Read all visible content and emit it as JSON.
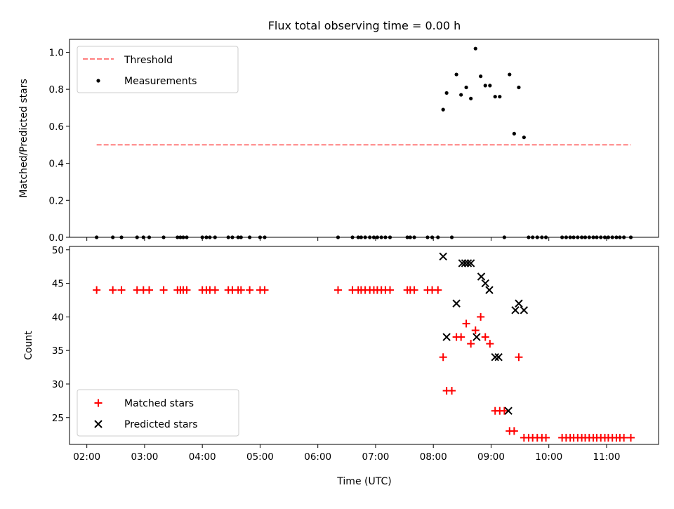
{
  "chart_data": [
    {
      "type": "scatter",
      "title": "Flux total observing time = 0.00 h",
      "xlabel": "",
      "ylabel": "Matched/Predicted stars",
      "ylim": [
        0,
        1.07
      ],
      "yticks": [
        0.0,
        0.2,
        0.4,
        0.6,
        0.8,
        1.0
      ],
      "ytick_labels": [
        "0.0",
        "0.2",
        "0.4",
        "0.6",
        "0.8",
        "1.0"
      ],
      "xlim": [
        1.7,
        11.9
      ],
      "xticks": [
        2,
        3,
        4,
        5,
        6,
        7,
        8,
        9,
        10,
        11
      ],
      "xtick_labels": [
        "",
        "",
        "",
        "",
        "",
        "",
        "",
        "",
        "",
        ""
      ],
      "grid": false,
      "legend_position": "top-left",
      "threshold": {
        "name": "Threshold",
        "value": 0.5,
        "x_range": [
          2.17,
          11.42
        ],
        "color": "#ff7f7f",
        "style": "dashed"
      },
      "measurements": {
        "name": "Measurements",
        "color": "#000000",
        "x": [
          2.17,
          2.45,
          2.6,
          2.87,
          2.98,
          3.08,
          3.33,
          3.57,
          3.62,
          3.67,
          3.73,
          4.0,
          4.07,
          4.13,
          4.22,
          4.45,
          4.52,
          4.62,
          4.67,
          4.82,
          5.0,
          5.08,
          6.35,
          6.6,
          6.7,
          6.75,
          6.82,
          6.9,
          6.97,
          7.03,
          7.1,
          7.17,
          7.25,
          7.55,
          7.6,
          7.67,
          7.9,
          7.98,
          8.08,
          8.17,
          8.23,
          8.32,
          8.4,
          8.48,
          8.57,
          8.65,
          8.73,
          8.82,
          8.9,
          8.98,
          9.07,
          9.15,
          9.23,
          9.32,
          9.4,
          9.48,
          9.57,
          9.65,
          9.72,
          9.8,
          9.88,
          9.95,
          10.23,
          10.3,
          10.37,
          10.43,
          10.5,
          10.57,
          10.63,
          10.7,
          10.77,
          10.83,
          10.9,
          10.97,
          11.03,
          11.1,
          11.17,
          11.23,
          11.3,
          11.42
        ],
        "y": [
          0,
          0,
          0,
          0,
          0,
          0,
          0,
          0,
          0,
          0,
          0,
          0,
          0,
          0,
          0,
          0,
          0,
          0,
          0,
          0,
          0,
          0,
          0,
          0,
          0,
          0,
          0,
          0,
          0,
          0,
          0,
          0,
          0,
          0,
          0,
          0,
          0,
          0,
          0,
          0.69,
          0.78,
          0,
          0.88,
          0.77,
          0.81,
          0.75,
          1.02,
          0.87,
          0.82,
          0.82,
          0.76,
          0.76,
          0,
          0.88,
          0.56,
          0.81,
          0.54,
          0,
          0,
          0,
          0,
          0,
          0,
          0,
          0,
          0,
          0,
          0,
          0,
          0,
          0,
          0,
          0,
          0,
          0,
          0,
          0,
          0,
          0,
          0
        ]
      }
    },
    {
      "type": "scatter",
      "title": "",
      "xlabel": "Time (UTC)",
      "ylabel": "Count",
      "ylim": [
        21,
        50.5
      ],
      "yticks": [
        25,
        30,
        35,
        40,
        45,
        50
      ],
      "ytick_labels": [
        "25",
        "30",
        "35",
        "40",
        "45",
        "50"
      ],
      "xlim": [
        1.7,
        11.9
      ],
      "xticks": [
        2,
        3,
        4,
        5,
        6,
        7,
        8,
        9,
        10,
        11
      ],
      "xtick_labels": [
        "02:00",
        "03:00",
        "04:00",
        "05:00",
        "06:00",
        "07:00",
        "08:00",
        "09:00",
        "10:00",
        "11:00"
      ],
      "grid": false,
      "legend_position": "bottom-left",
      "series": [
        {
          "name": "Matched stars",
          "marker": "plus",
          "color": "#ff0000",
          "x": [
            2.17,
            2.45,
            2.6,
            2.87,
            2.98,
            3.08,
            3.33,
            3.57,
            3.62,
            3.67,
            3.73,
            4.0,
            4.07,
            4.13,
            4.22,
            4.45,
            4.52,
            4.62,
            4.67,
            4.82,
            5.0,
            5.08,
            6.35,
            6.6,
            6.7,
            6.75,
            6.82,
            6.9,
            6.97,
            7.03,
            7.1,
            7.17,
            7.25,
            7.55,
            7.6,
            7.67,
            7.9,
            7.98,
            8.08,
            8.17,
            8.23,
            8.32,
            8.4,
            8.48,
            8.57,
            8.65,
            8.73,
            8.82,
            8.9,
            8.98,
            9.07,
            9.15,
            9.23,
            9.32,
            9.4,
            9.48,
            9.57,
            9.65,
            9.72,
            9.8,
            9.88,
            9.95,
            10.23,
            10.3,
            10.37,
            10.43,
            10.5,
            10.57,
            10.63,
            10.7,
            10.77,
            10.83,
            10.9,
            10.97,
            11.03,
            11.1,
            11.17,
            11.23,
            11.3,
            11.42
          ],
          "y": [
            44,
            44,
            44,
            44,
            44,
            44,
            44,
            44,
            44,
            44,
            44,
            44,
            44,
            44,
            44,
            44,
            44,
            44,
            44,
            44,
            44,
            44,
            44,
            44,
            44,
            44,
            44,
            44,
            44,
            44,
            44,
            44,
            44,
            44,
            44,
            44,
            44,
            44,
            44,
            34,
            29,
            29,
            37,
            37,
            39,
            36,
            38,
            40,
            37,
            36,
            26,
            26,
            26,
            23,
            23,
            34,
            22,
            22,
            22,
            22,
            22,
            22,
            22,
            22,
            22,
            22,
            22,
            22,
            22,
            22,
            22,
            22,
            22,
            22,
            22,
            22,
            22,
            22,
            22,
            22
          ]
        },
        {
          "name": "Predicted stars",
          "marker": "x",
          "color": "#000000",
          "x": [
            8.17,
            8.23,
            8.4,
            8.5,
            8.55,
            8.6,
            8.65,
            8.75,
            8.83,
            8.9,
            8.97,
            9.07,
            9.13,
            9.3,
            9.42,
            9.48,
            9.57
          ],
          "y": [
            49,
            37,
            42,
            48,
            48,
            48,
            48,
            37,
            46,
            45,
            44,
            34,
            34,
            26,
            41,
            42,
            41
          ]
        }
      ]
    }
  ]
}
